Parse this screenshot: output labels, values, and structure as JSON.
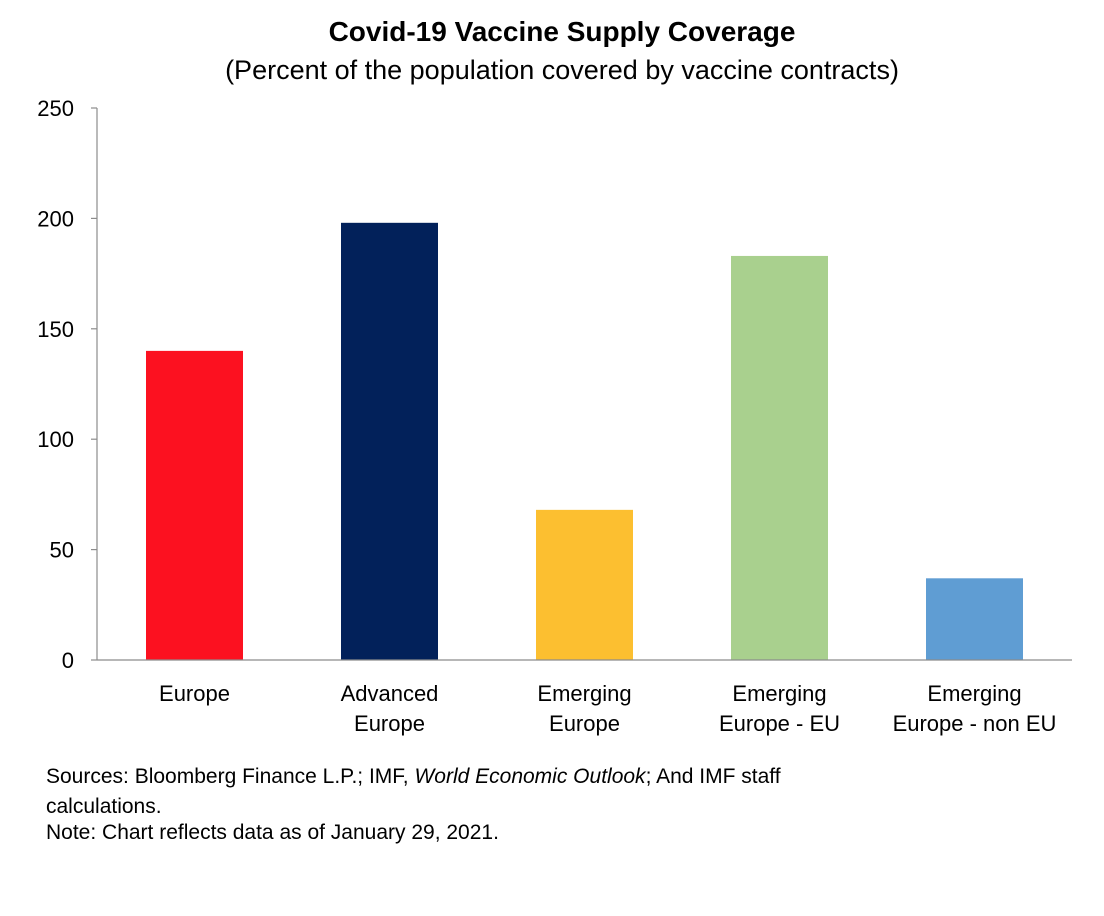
{
  "chart_data": {
    "type": "bar",
    "title": "Covid-19 Vaccine Supply Coverage",
    "subtitle": "(Percent of the population covered by vaccine contracts)",
    "categories": [
      [
        "Europe"
      ],
      [
        "Advanced",
        "Europe"
      ],
      [
        "Emerging",
        "Europe"
      ],
      [
        "Emerging",
        "Europe - EU"
      ],
      [
        "Emerging",
        "Europe - non EU"
      ]
    ],
    "values": [
      140,
      198,
      68,
      183,
      37
    ],
    "colors": [
      "#fc1120",
      "#02215a",
      "#fcbf30",
      "#a9d08e",
      "#5f9dd3"
    ],
    "xlabel": "",
    "ylabel": "",
    "ylim": [
      0,
      250
    ],
    "yticks": [
      0,
      50,
      100,
      150,
      200,
      250
    ],
    "grid": false,
    "legend": "none"
  },
  "footnotes": {
    "sources_prefix": "Sources: Bloomberg Finance L.P.; IMF, ",
    "sources_italic": "World Economic Outlook",
    "sources_suffix": "; And IMF staff",
    "sources_line2": "calculations.",
    "note": "Note: Chart reflects data as of January 29, 2021."
  }
}
